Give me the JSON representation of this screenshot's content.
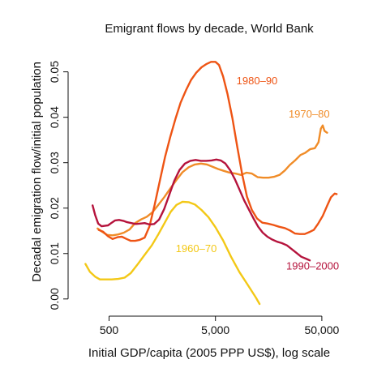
{
  "chart_data": {
    "type": "line",
    "title": "Emigrant flows by decade, World Bank",
    "xlabel": "Initial GDP/capita (2005 PPP US$), log scale",
    "ylabel": "Decadal emigration flow/initial population",
    "x_scale": "log",
    "xlim": [
      250,
      75000
    ],
    "ylim": [
      -0.002,
      0.056
    ],
    "x_ticks": [
      {
        "value": 500,
        "label": "500"
      },
      {
        "value": 5000,
        "label": "5,000"
      },
      {
        "value": 50000,
        "label": "50,000"
      }
    ],
    "y_ticks": [
      {
        "value": 0.0,
        "label": "0.00"
      },
      {
        "value": 0.01,
        "label": "0.01"
      },
      {
        "value": 0.02,
        "label": "0.02"
      },
      {
        "value": 0.03,
        "label": "0.03"
      },
      {
        "value": 0.04,
        "label": "0.04"
      },
      {
        "value": 0.05,
        "label": "0.05"
      }
    ],
    "grid": false,
    "legend": "none",
    "series": [
      {
        "name": "1960–70",
        "color": "#f3c816",
        "label_at": {
          "x": 3300,
          "y": 0.0103
        },
        "points": [
          [
            300,
            0.0077
          ],
          [
            330,
            0.006
          ],
          [
            370,
            0.0049
          ],
          [
            410,
            0.0043
          ],
          [
            460,
            0.0043
          ],
          [
            530,
            0.0043
          ],
          [
            610,
            0.0044
          ],
          [
            700,
            0.0047
          ],
          [
            800,
            0.0057
          ],
          [
            920,
            0.0075
          ],
          [
            1080,
            0.0097
          ],
          [
            1260,
            0.0118
          ],
          [
            1450,
            0.0142
          ],
          [
            1670,
            0.0168
          ],
          [
            1900,
            0.0192
          ],
          [
            2150,
            0.0207
          ],
          [
            2450,
            0.0214
          ],
          [
            2800,
            0.0213
          ],
          [
            3200,
            0.0208
          ],
          [
            3700,
            0.0196
          ],
          [
            4300,
            0.018
          ],
          [
            5000,
            0.0158
          ],
          [
            5900,
            0.0129
          ],
          [
            7000,
            0.0093
          ],
          [
            8400,
            0.0059
          ],
          [
            10000,
            0.0032
          ],
          [
            12000,
            0.0003
          ],
          [
            13000,
            -0.0011
          ]
        ]
      },
      {
        "name": "1970–80",
        "color": "#f08c28",
        "label_at": {
          "x": 38000,
          "y": 0.0399
        },
        "points": [
          [
            390,
            0.0155
          ],
          [
            430,
            0.0148
          ],
          [
            480,
            0.0141
          ],
          [
            540,
            0.014
          ],
          [
            610,
            0.0142
          ],
          [
            690,
            0.0146
          ],
          [
            780,
            0.0153
          ],
          [
            880,
            0.0167
          ],
          [
            1000,
            0.0175
          ],
          [
            1130,
            0.0181
          ],
          [
            1280,
            0.0191
          ],
          [
            1450,
            0.0207
          ],
          [
            1650,
            0.0224
          ],
          [
            1880,
            0.0243
          ],
          [
            2150,
            0.0262
          ],
          [
            2450,
            0.0279
          ],
          [
            2800,
            0.029
          ],
          [
            3200,
            0.0296
          ],
          [
            3650,
            0.0298
          ],
          [
            4150,
            0.0296
          ],
          [
            4700,
            0.0291
          ],
          [
            5300,
            0.0286
          ],
          [
            6000,
            0.0282
          ],
          [
            6800,
            0.0278
          ],
          [
            7700,
            0.0276
          ],
          [
            8700,
            0.0273
          ],
          [
            9800,
            0.0278
          ],
          [
            11000,
            0.0276
          ],
          [
            12500,
            0.0268
          ],
          [
            14000,
            0.0267
          ],
          [
            15800,
            0.0267
          ],
          [
            17800,
            0.0269
          ],
          [
            20000,
            0.0273
          ],
          [
            22500,
            0.0283
          ],
          [
            25000,
            0.0295
          ],
          [
            28000,
            0.0305
          ],
          [
            31500,
            0.0317
          ],
          [
            35000,
            0.0322
          ],
          [
            39000,
            0.033
          ],
          [
            43000,
            0.0332
          ],
          [
            46500,
            0.0345
          ],
          [
            49000,
            0.0375
          ],
          [
            51000,
            0.0382
          ],
          [
            53000,
            0.037
          ],
          [
            56000,
            0.0366
          ]
        ]
      },
      {
        "name": "1980–90",
        "color": "#ee5414",
        "label_at": {
          "x": 12300,
          "y": 0.0473
        },
        "points": [
          [
            400,
            0.0152
          ],
          [
            440,
            0.0148
          ],
          [
            490,
            0.0138
          ],
          [
            540,
            0.0132
          ],
          [
            600,
            0.0136
          ],
          [
            660,
            0.0137
          ],
          [
            730,
            0.0132
          ],
          [
            800,
            0.0128
          ],
          [
            880,
            0.0128
          ],
          [
            970,
            0.013
          ],
          [
            1080,
            0.0135
          ],
          [
            1200,
            0.016
          ],
          [
            1340,
            0.0207
          ],
          [
            1500,
            0.026
          ],
          [
            1680,
            0.0313
          ],
          [
            1880,
            0.0357
          ],
          [
            2100,
            0.0396
          ],
          [
            2350,
            0.0432
          ],
          [
            2650,
            0.046
          ],
          [
            2950,
            0.0482
          ],
          [
            3300,
            0.0498
          ],
          [
            3700,
            0.051
          ],
          [
            4100,
            0.0517
          ],
          [
            4550,
            0.0522
          ],
          [
            5000,
            0.0522
          ],
          [
            5400,
            0.0515
          ],
          [
            5900,
            0.049
          ],
          [
            6500,
            0.0451
          ],
          [
            7200,
            0.0399
          ],
          [
            8000,
            0.0336
          ],
          [
            8900,
            0.0275
          ],
          [
            9900,
            0.0225
          ],
          [
            11000,
            0.0196
          ],
          [
            12300,
            0.0177
          ],
          [
            13800,
            0.0168
          ],
          [
            15500,
            0.0166
          ],
          [
            17500,
            0.0163
          ],
          [
            19800,
            0.0159
          ],
          [
            22500,
            0.0156
          ],
          [
            25000,
            0.0151
          ],
          [
            28000,
            0.0144
          ],
          [
            31000,
            0.0143
          ],
          [
            34500,
            0.0143
          ],
          [
            38000,
            0.0147
          ],
          [
            42000,
            0.0152
          ],
          [
            46000,
            0.0165
          ],
          [
            51000,
            0.0183
          ],
          [
            56000,
            0.0205
          ],
          [
            61000,
            0.0224
          ],
          [
            66000,
            0.0232
          ],
          [
            69000,
            0.0231
          ]
        ]
      },
      {
        "name": "1990–2000",
        "color": "#b5133c",
        "label_at": {
          "x": 41000,
          "y": 0.0065
        },
        "points": [
          [
            350,
            0.0206
          ],
          [
            370,
            0.0185
          ],
          [
            395,
            0.0166
          ],
          [
            425,
            0.016
          ],
          [
            455,
            0.0161
          ],
          [
            490,
            0.0162
          ],
          [
            530,
            0.0168
          ],
          [
            570,
            0.0173
          ],
          [
            620,
            0.0174
          ],
          [
            680,
            0.0172
          ],
          [
            740,
            0.0169
          ],
          [
            810,
            0.0167
          ],
          [
            890,
            0.0165
          ],
          [
            980,
            0.0166
          ],
          [
            1080,
            0.0167
          ],
          [
            1200,
            0.0164
          ],
          [
            1330,
            0.0165
          ],
          [
            1480,
            0.0175
          ],
          [
            1650,
            0.0198
          ],
          [
            1840,
            0.0229
          ],
          [
            2050,
            0.026
          ],
          [
            2300,
            0.0284
          ],
          [
            2580,
            0.0298
          ],
          [
            2900,
            0.0304
          ],
          [
            3250,
            0.0306
          ],
          [
            3650,
            0.0304
          ],
          [
            4100,
            0.0304
          ],
          [
            4600,
            0.0305
          ],
          [
            5100,
            0.0307
          ],
          [
            5600,
            0.0305
          ],
          [
            6200,
            0.0298
          ],
          [
            6900,
            0.0283
          ],
          [
            7600,
            0.0264
          ],
          [
            8400,
            0.0241
          ],
          [
            9300,
            0.0217
          ],
          [
            10300,
            0.0197
          ],
          [
            11400,
            0.0177
          ],
          [
            12600,
            0.0159
          ],
          [
            13900,
            0.0146
          ],
          [
            15400,
            0.0137
          ],
          [
            17000,
            0.0131
          ],
          [
            19000,
            0.0126
          ],
          [
            21000,
            0.0123
          ],
          [
            23500,
            0.0118
          ],
          [
            26000,
            0.011
          ],
          [
            29000,
            0.0101
          ],
          [
            32000,
            0.0093
          ],
          [
            36000,
            0.0088
          ],
          [
            38500,
            0.0085
          ]
        ]
      }
    ]
  }
}
